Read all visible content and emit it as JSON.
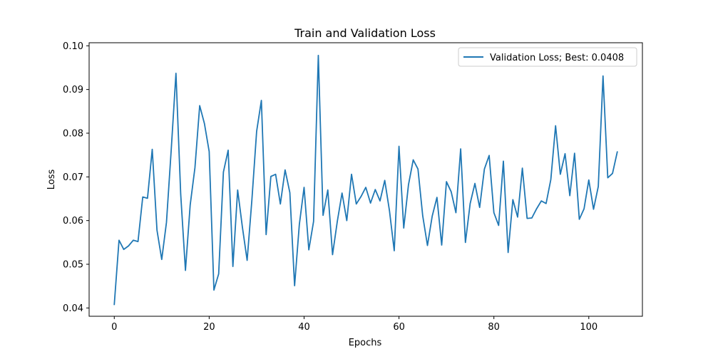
{
  "chart_data": {
    "type": "line",
    "title": "Train and Validation Loss",
    "xlabel": "Epochs",
    "ylabel": "Loss",
    "xlim": [
      -5.3,
      111.3
    ],
    "ylim": [
      0.0381,
      0.1007
    ],
    "x_ticks": [
      0,
      20,
      40,
      60,
      80,
      100
    ],
    "y_ticks": [
      0.04,
      0.05,
      0.06,
      0.07,
      0.08,
      0.09,
      0.1
    ],
    "y_tick_labels": [
      "0.04",
      "0.05",
      "0.06",
      "0.07",
      "0.08",
      "0.09",
      "0.10"
    ],
    "grid": false,
    "legend_position": "top-right",
    "line_color": "#1f77b4",
    "series": [
      {
        "name": "Validation Loss; Best: 0.0408",
        "values": [
          0.0408,
          0.0555,
          0.0534,
          0.0542,
          0.0555,
          0.0552,
          0.0654,
          0.0651,
          0.0763,
          0.0578,
          0.0511,
          0.0596,
          0.0762,
          0.0937,
          0.066,
          0.0486,
          0.0636,
          0.0721,
          0.0863,
          0.0822,
          0.0758,
          0.0441,
          0.0478,
          0.0711,
          0.0761,
          0.0495,
          0.067,
          0.0585,
          0.0509,
          0.0647,
          0.0804,
          0.0875,
          0.0568,
          0.0701,
          0.0706,
          0.0638,
          0.0716,
          0.0664,
          0.0451,
          0.0591,
          0.0676,
          0.0533,
          0.0598,
          0.0978,
          0.0612,
          0.067,
          0.0522,
          0.0598,
          0.0663,
          0.06,
          0.0706,
          0.0638,
          0.0655,
          0.0676,
          0.064,
          0.0671,
          0.0645,
          0.0692,
          0.0622,
          0.0531,
          0.077,
          0.0583,
          0.0682,
          0.0739,
          0.0718,
          0.0611,
          0.0543,
          0.061,
          0.0653,
          0.0544,
          0.0689,
          0.0666,
          0.0618,
          0.0764,
          0.055,
          0.0639,
          0.0685,
          0.063,
          0.0718,
          0.0749,
          0.0618,
          0.0589,
          0.0736,
          0.0527,
          0.0648,
          0.0608,
          0.072,
          0.0605,
          0.0606,
          0.0627,
          0.0645,
          0.0639,
          0.0694,
          0.0817,
          0.0706,
          0.0753,
          0.0657,
          0.0754,
          0.0603,
          0.0627,
          0.0693,
          0.0626,
          0.0678,
          0.0931,
          0.0698,
          0.0708,
          0.0757
        ]
      }
    ]
  }
}
